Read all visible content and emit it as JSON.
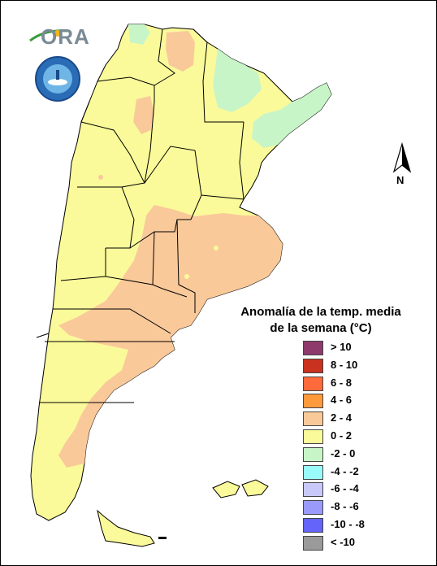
{
  "logo": {
    "text": "ORA",
    "seal_icon": "smn-seal-icon"
  },
  "legend": {
    "title_line1": "Anomalía de la temp. media",
    "title_line2": "de la semana (°C)",
    "items": [
      {
        "label": "> 10",
        "color": "#8e3a6b"
      },
      {
        "label": "8 - 10",
        "color": "#c8321e"
      },
      {
        "label": "6 - 8",
        "color": "#ff6a3c"
      },
      {
        "label": "4 - 6",
        "color": "#ff9a3c"
      },
      {
        "label": "2 - 4",
        "color": "#fac99a"
      },
      {
        "label": "0 - 2",
        "color": "#fafa9a"
      },
      {
        "label": "-2 - 0",
        "color": "#c8f5c8"
      },
      {
        "label": "-4 - -2",
        "color": "#9afafa"
      },
      {
        "label": "-6 - -4",
        "color": "#c8c8fa"
      },
      {
        "label": "-8 - -6",
        "color": "#9a9afa"
      },
      {
        "label": "-10 - -8",
        "color": "#6464fa"
      },
      {
        "label": "< -10",
        "color": "#9a9a9a"
      }
    ]
  },
  "north_arrow": {
    "label": "N",
    "icon": "north-arrow-icon"
  },
  "colors": {
    "warm": "#fac99a",
    "mild": "#fafa9a",
    "cool": "#c8f5c8",
    "border": "#000000"
  }
}
